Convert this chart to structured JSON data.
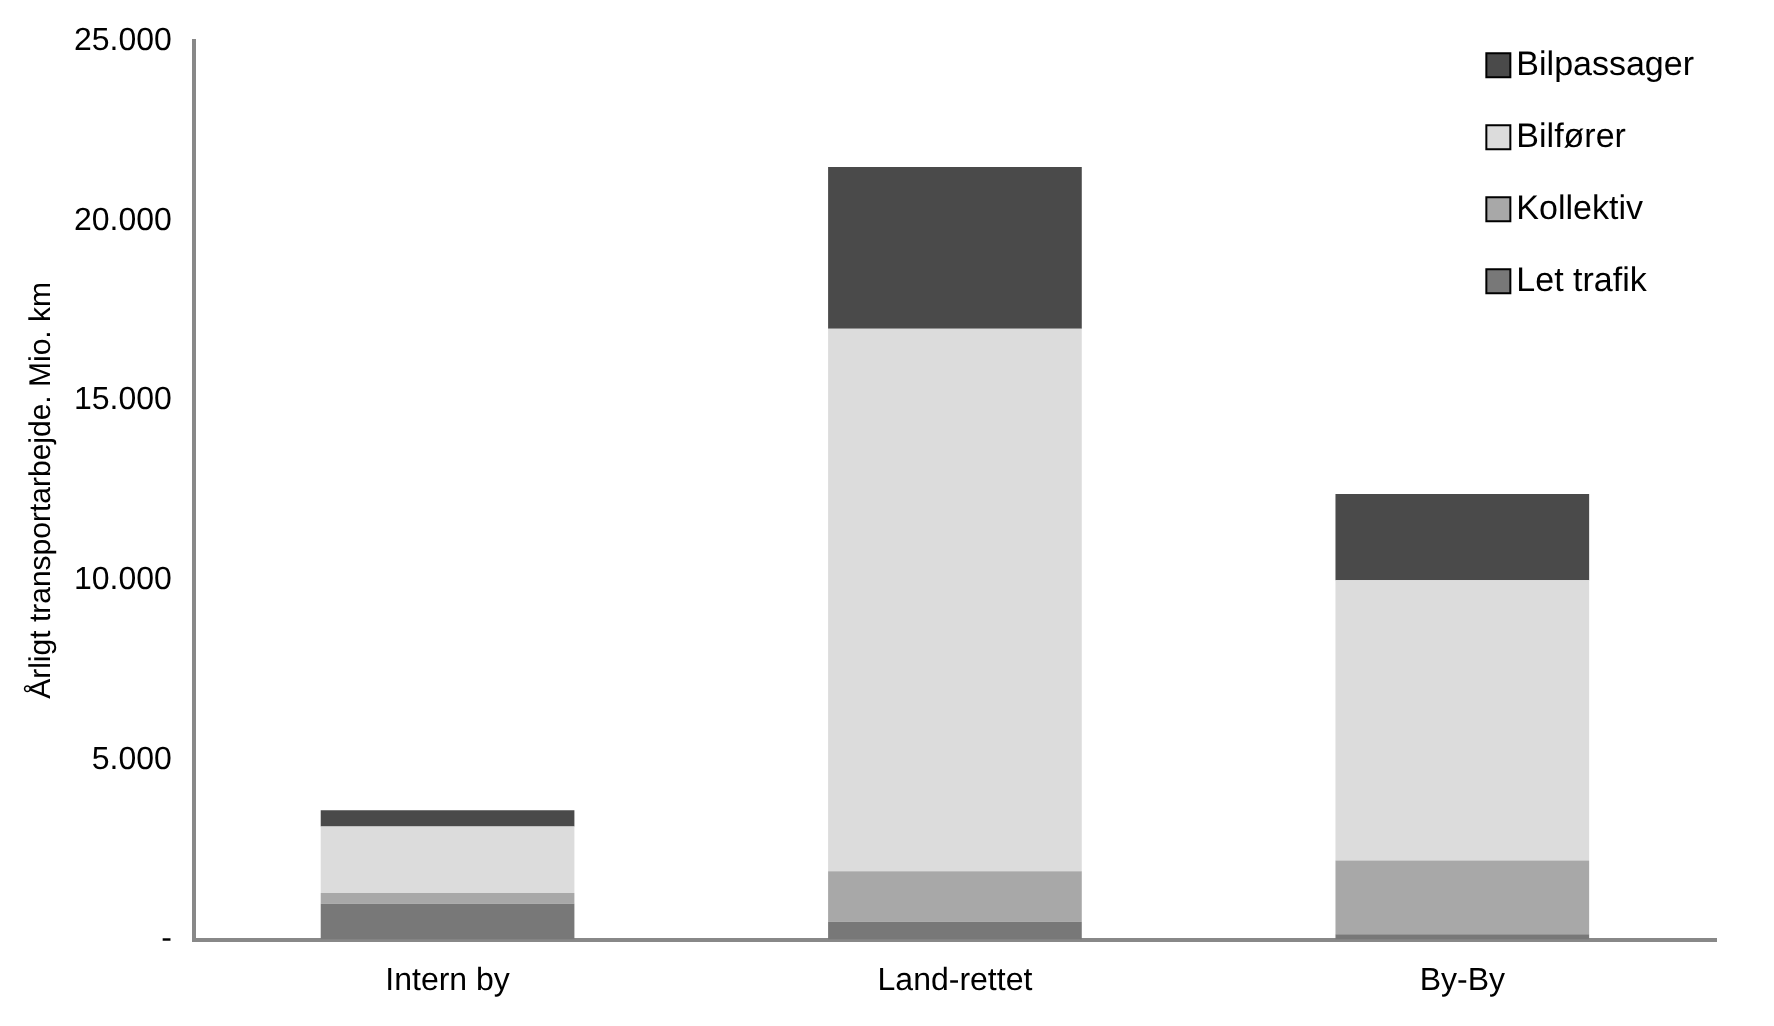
{
  "chart_data": {
    "type": "bar",
    "stacked": true,
    "categories": [
      "Intern by",
      "Land-rettet",
      "By-By"
    ],
    "ylabel": "Årligt transportarbejde. Mio. km",
    "ylim": [
      0,
      25000
    ],
    "yticks": [
      {
        "value": 0,
        "label": "-"
      },
      {
        "value": 5000,
        "label": "5.000"
      },
      {
        "value": 10000,
        "label": "10.000"
      },
      {
        "value": 15000,
        "label": "15.000"
      },
      {
        "value": 20000,
        "label": "20.000"
      },
      {
        "value": 25000,
        "label": "25.000"
      }
    ],
    "grid": false,
    "legend": "top right",
    "series": [
      {
        "name": "Let trafik",
        "color": "#787878",
        "values": [
          1000,
          500,
          150
        ]
      },
      {
        "name": "Kollektiv",
        "color": "#a8a8a8",
        "values": [
          300,
          1400,
          2050
        ]
      },
      {
        "name": "Bilfører",
        "color": "#dcdcdc",
        "values": [
          1850,
          15100,
          7800
        ]
      },
      {
        "name": "Bilpassager",
        "color": "#4a4a4a",
        "values": [
          450,
          4500,
          2400
        ]
      }
    ]
  }
}
